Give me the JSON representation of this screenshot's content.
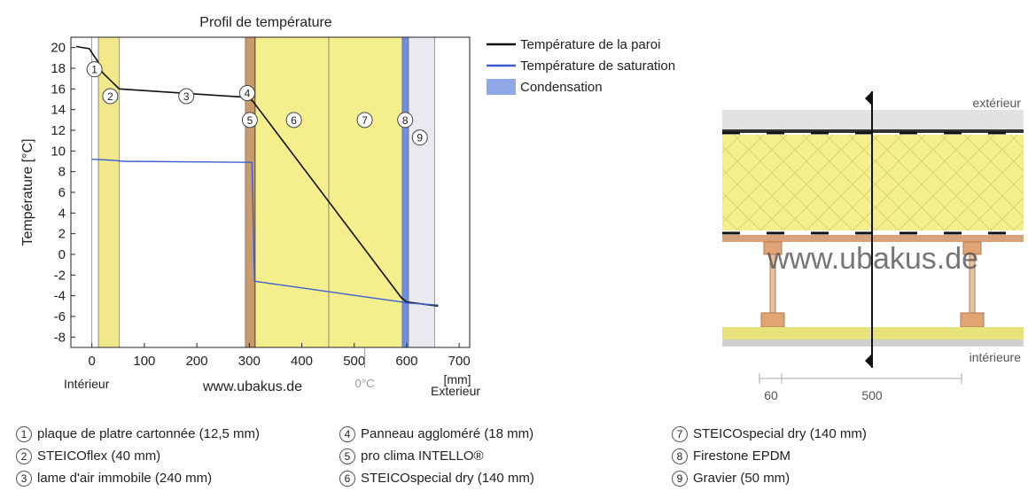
{
  "chart_data": [
    {
      "type": "line",
      "title": "Profil de température",
      "ylabel": "Température [°C]",
      "xlabel": "[mm]",
      "xlim": [
        -40,
        720
      ],
      "ylim": [
        -9,
        21
      ],
      "x_ticks": [
        "0",
        "100",
        "200",
        "300",
        "400",
        "500",
        "600",
        "700"
      ],
      "y_ticks": [
        "20",
        "18",
        "16",
        "14",
        "12",
        "10",
        "8",
        "6",
        "4",
        "2",
        "0",
        "-2",
        "-4",
        "-6",
        "-8"
      ],
      "legend_position": "right",
      "legend": [
        {
          "label": "Température de la paroi",
          "color": "#111111"
        },
        {
          "label": "Température de saturation",
          "color": "#3a5fcd"
        },
        {
          "label": "Condensation",
          "color": "#8fa8e6"
        }
      ],
      "series": [
        {
          "name": "Température de la paroi",
          "x": [
            -30,
            -5,
            0,
            12,
            20,
            52,
            292,
            300,
            305,
            310,
            590,
            600,
            660
          ],
          "y": [
            20.1,
            19.9,
            19.5,
            18.6,
            17.6,
            16.0,
            15.2,
            15.0,
            14.9,
            14.6,
            -4.2,
            -4.6,
            -5.0
          ]
        },
        {
          "name": "Température de saturation",
          "x": [
            0,
            40,
            60,
            300,
            305,
            310,
            590,
            600,
            660
          ],
          "y": [
            9.2,
            9.1,
            9.0,
            8.9,
            8.9,
            -2.6,
            -4.6,
            -4.7,
            -4.9
          ]
        }
      ],
      "layers": [
        {
          "number": "1",
          "x0": 0,
          "x1": 12.5,
          "color": "#ffffff"
        },
        {
          "number": "2",
          "x0": 12.5,
          "x1": 52.5,
          "color": "#f0e88a"
        },
        {
          "number": "3",
          "x0": 52.5,
          "x1": 292.5,
          "color": "#ffffff"
        },
        {
          "number": "4",
          "x0": 292.5,
          "x1": 310.5,
          "color": "#c99a6b"
        },
        {
          "number": "5",
          "x0": 310.5,
          "x1": 311.5,
          "color": "#222222"
        },
        {
          "number": "6",
          "x0": 311.5,
          "x1": 451.5,
          "color": "#f4ee8c"
        },
        {
          "number": "7",
          "x0": 451.5,
          "x1": 591.5,
          "color": "#f4ee8c"
        },
        {
          "number": "8",
          "x0": 591.5,
          "x1": 603.5,
          "color": "#6f8fe0"
        },
        {
          "number": "9",
          "x0": 603.5,
          "x1": 653.5,
          "color": "#e8eaf0"
        }
      ],
      "layer_markers": [
        {
          "number": "1",
          "x": 5,
          "y": 17.9
        },
        {
          "number": "2",
          "x": 35,
          "y": 15.3
        },
        {
          "number": "3",
          "x": 180,
          "y": 15.3
        },
        {
          "number": "4",
          "x": 296,
          "y": 15.6
        },
        {
          "number": "5",
          "x": 301,
          "y": 13.0
        },
        {
          "number": "6",
          "x": 385,
          "y": 13.0
        },
        {
          "number": "7",
          "x": 520,
          "y": 13.0
        },
        {
          "number": "8",
          "x": 597,
          "y": 13.0
        },
        {
          "number": "9",
          "x": 625,
          "y": 11.3
        }
      ],
      "annotations": {
        "interior": "Intérieur",
        "exterior": "Exterieur",
        "zero_c": "0°C",
        "zero_c_x": 520,
        "watermark": "www.ubakus.de"
      }
    }
  ],
  "section_view": {
    "exterior_label": "extérieur",
    "interior_label": "intérieure",
    "watermark": "www.ubakus.de",
    "dimension_left": "60",
    "dimension_right": "500"
  },
  "layer_legend": [
    {
      "number": "1",
      "label": "plaque de platre cartonnée (12,5 mm)"
    },
    {
      "number": "2",
      "label": "STEICOflex (40 mm)"
    },
    {
      "number": "3",
      "label": "lame d'air immobile (240 mm)"
    },
    {
      "number": "4",
      "label": "Panneau aggloméré (18 mm)"
    },
    {
      "number": "5",
      "label": "pro clima INTELLO®"
    },
    {
      "number": "6",
      "label": "STEICOspecial dry (140 mm)"
    },
    {
      "number": "7",
      "label": "STEICOspecial dry (140 mm)"
    },
    {
      "number": "8",
      "label": "Firestone EPDM"
    },
    {
      "number": "9",
      "label": "Gravier (50 mm)"
    }
  ]
}
